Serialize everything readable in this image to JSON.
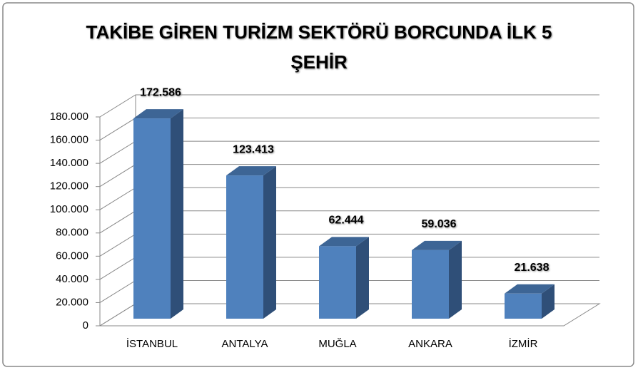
{
  "chart_data": {
    "type": "bar3d",
    "title": "TAKİBE GİREN TURİZM SEKTÖRÜ BORCUNDA İLK 5 ŞEHİR",
    "categories": [
      "İSTANBUL",
      "ANTALYA",
      "MUĞLA",
      "ANKARA",
      "İZMİR"
    ],
    "values": [
      172586,
      123413,
      62444,
      59036,
      21638
    ],
    "value_labels": [
      "172.586",
      "123.413",
      "62.444",
      "59.036",
      "21.638"
    ],
    "color": "#4f81bd",
    "ylim": [
      0,
      180000
    ],
    "yticks": [
      0,
      {
        "value": 20000,
        "label": "20.000"
      },
      {
        "value": 40000,
        "label": "40.000"
      },
      {
        "value": 60000,
        "label": "60.000"
      },
      {
        "value": 80000,
        "label": "80.000"
      },
      {
        "value": 100000,
        "label": "100.000"
      },
      {
        "value": 120000,
        "label": "120.000"
      },
      {
        "value": 140000,
        "label": "140.000"
      },
      {
        "value": 160000,
        "label": "160.000"
      },
      {
        "value": 180000,
        "label": "180.000"
      }
    ],
    "grid": true
  }
}
